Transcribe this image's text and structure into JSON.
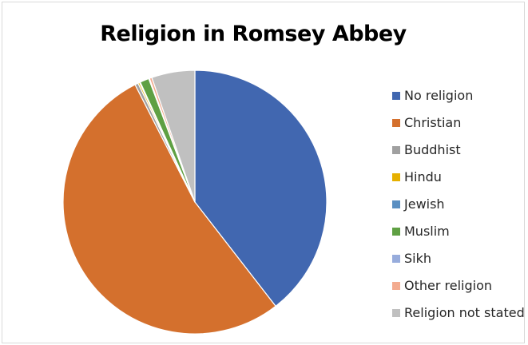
{
  "chart_data": {
    "type": "pie",
    "title": "Religion in Romsey Abbey",
    "legend_position": "right",
    "slices": [
      {
        "label": "No religion",
        "value": 39.5,
        "color": "#4167b0"
      },
      {
        "label": "Christian",
        "value": 53.0,
        "color": "#d4702d"
      },
      {
        "label": "Buddhist",
        "value": 0.4,
        "color": "#a0a0a0"
      },
      {
        "label": "Hindu",
        "value": 0.2,
        "color": "#e6b000"
      },
      {
        "label": "Jewish",
        "value": 0.1,
        "color": "#5a8fc2"
      },
      {
        "label": "Muslim",
        "value": 1.1,
        "color": "#5fa043"
      },
      {
        "label": "Sikh",
        "value": 0.1,
        "color": "#97acdc"
      },
      {
        "label": "Other religion",
        "value": 0.3,
        "color": "#f3ab8f"
      },
      {
        "label": "Religion not stated",
        "value": 5.3,
        "color": "#c0c0c0"
      }
    ]
  }
}
